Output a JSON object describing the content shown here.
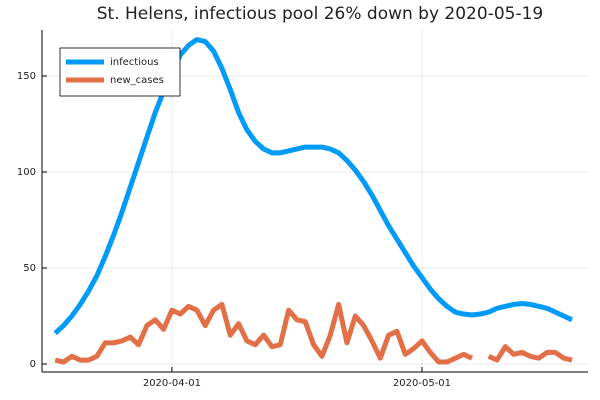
{
  "chart_data": {
    "type": "line",
    "title": "St. Helens, infectious pool 26% down by 2020-05-19",
    "x": [
      "2020-03-18",
      "2020-03-19",
      "2020-03-20",
      "2020-03-21",
      "2020-03-22",
      "2020-03-23",
      "2020-03-24",
      "2020-03-25",
      "2020-03-26",
      "2020-03-27",
      "2020-03-28",
      "2020-03-29",
      "2020-03-30",
      "2020-03-31",
      "2020-04-01",
      "2020-04-02",
      "2020-04-03",
      "2020-04-04",
      "2020-04-05",
      "2020-04-06",
      "2020-04-07",
      "2020-04-08",
      "2020-04-09",
      "2020-04-10",
      "2020-04-11",
      "2020-04-12",
      "2020-04-13",
      "2020-04-14",
      "2020-04-15",
      "2020-04-16",
      "2020-04-17",
      "2020-04-18",
      "2020-04-19",
      "2020-04-20",
      "2020-04-21",
      "2020-04-22",
      "2020-04-23",
      "2020-04-24",
      "2020-04-25",
      "2020-04-26",
      "2020-04-27",
      "2020-04-28",
      "2020-04-29",
      "2020-04-30",
      "2020-05-01",
      "2020-05-02",
      "2020-05-03",
      "2020-05-04",
      "2020-05-05",
      "2020-05-06",
      "2020-05-07",
      "2020-05-08",
      "2020-05-09",
      "2020-05-10",
      "2020-05-11",
      "2020-05-12",
      "2020-05-13",
      "2020-05-14",
      "2020-05-15",
      "2020-05-16",
      "2020-05-17",
      "2020-05-18",
      "2020-05-19"
    ],
    "series": [
      {
        "name": "infectious",
        "color": "#009af9",
        "values": [
          16,
          20,
          25,
          31,
          38,
          46,
          56,
          67,
          79,
          92,
          105,
          118,
          131,
          142,
          152,
          161,
          166,
          169,
          168,
          163,
          154,
          143,
          131,
          122,
          116,
          112,
          110,
          110,
          111,
          112,
          113,
          113,
          113,
          112,
          110,
          106,
          101,
          95,
          88,
          80,
          72,
          65,
          58,
          51,
          45,
          39,
          34,
          30,
          27,
          26,
          25.5,
          26,
          27,
          29,
          30,
          31,
          31.5,
          31,
          30,
          29,
          27,
          25,
          23
        ]
      },
      {
        "name": "new_cases",
        "color": "#e26f46",
        "values": [
          2,
          1,
          4,
          2,
          2,
          4,
          11,
          11,
          12,
          14,
          10,
          20,
          23,
          18,
          28,
          26,
          30,
          28,
          20,
          28,
          31,
          15,
          21,
          12,
          10,
          15,
          9,
          10,
          28,
          23,
          22,
          10,
          4,
          15,
          31,
          11,
          25,
          20,
          12,
          3,
          15,
          17,
          5,
          8,
          12,
          6,
          1,
          1,
          3,
          5,
          3,
          null,
          4,
          2,
          9,
          5,
          6,
          4,
          3,
          6,
          6,
          3,
          2
        ]
      }
    ],
    "xlim": [
      "2020-03-16T10:00",
      "2020-05-20T22:00"
    ],
    "xticks": [
      "2020-04-01",
      "2020-05-01"
    ],
    "ylim": [
      -4.2,
      174
    ],
    "yticks": [
      0,
      50,
      100,
      150
    ],
    "grid": true,
    "legend": "top-left"
  }
}
